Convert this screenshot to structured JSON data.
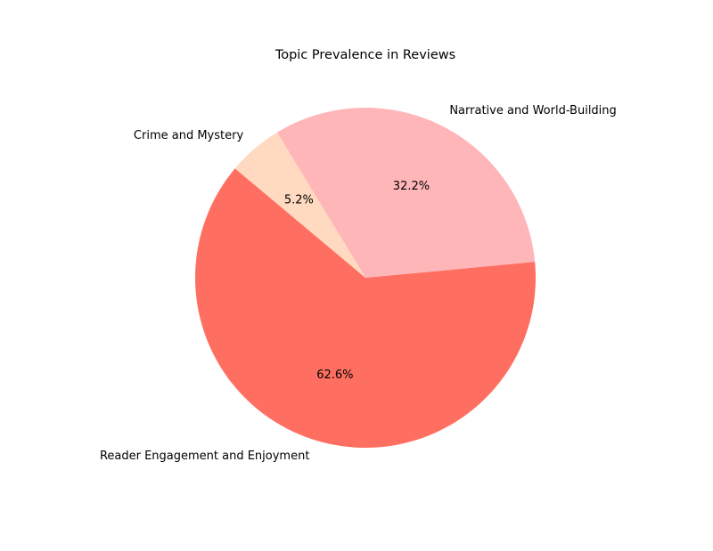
{
  "chart_data": {
    "type": "pie",
    "title": "Topic Prevalence in Reviews",
    "categories": [
      "Reader Engagement and Enjoyment",
      "Narrative and World-Building",
      "Crime and Mystery"
    ],
    "values": [
      62.6,
      32.2,
      5.2
    ],
    "percent_labels": [
      "62.6%",
      "32.2%",
      "5.2%"
    ],
    "colors": [
      "#ff6f61",
      "#ffb6b9",
      "#ffdac1"
    ],
    "start_angle_deg": 140,
    "direction": "counterclockwise",
    "legend": "none"
  }
}
